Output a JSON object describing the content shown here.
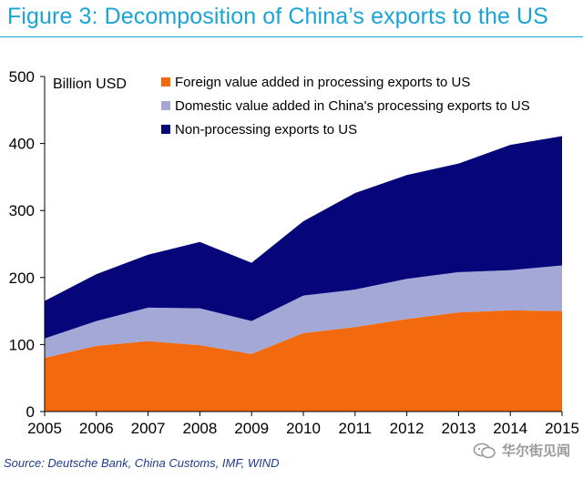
{
  "title": "Figure 3: Decomposition of China’s exports to the US",
  "source": "Source: Deutsche Bank, China Customs, IMF, WIND",
  "watermark": "华尔街见闻",
  "chart_data": {
    "type": "area",
    "stacked": true,
    "unit_label": "Billion USD",
    "x": [
      "2005",
      "2006",
      "2007",
      "2008",
      "2009",
      "2010",
      "2011",
      "2012",
      "2013",
      "2014",
      "2015"
    ],
    "yticks": [
      0,
      100,
      200,
      300,
      400,
      500
    ],
    "ylim": [
      0,
      500
    ],
    "grid": false,
    "legend_position": "top-left",
    "series": [
      {
        "name": "Foreign value added in processing exports to US",
        "color": "#f26a0d",
        "values": [
          80,
          98,
          105,
          99,
          86,
          117,
          126,
          138,
          148,
          151,
          150
        ]
      },
      {
        "name": "Domestic value added in China's processing exports to US",
        "color": "#a3a8d6",
        "values": [
          29,
          37,
          50,
          55,
          49,
          56,
          56,
          60,
          60,
          60,
          68
        ]
      },
      {
        "name": "Non-processing exports to US",
        "color": "#06067a",
        "values": [
          56,
          70,
          79,
          99,
          87,
          111,
          144,
          155,
          162,
          187,
          193
        ]
      }
    ]
  }
}
